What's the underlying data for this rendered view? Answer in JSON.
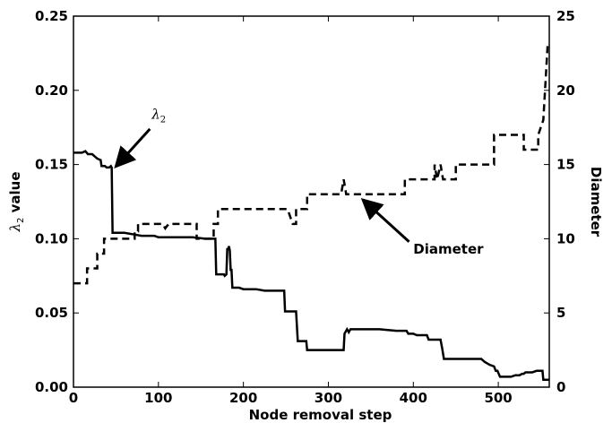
{
  "chart_data": {
    "type": "line",
    "xlabel": "Node removal step",
    "ylabel_left": "value",
    "ylabel_left_symbol": "λ",
    "ylabel_left_sub": "2",
    "ylabel_right": "Diameter",
    "xlim": [
      0,
      560
    ],
    "ylim_left": [
      0,
      0.25
    ],
    "ylim_right": [
      0,
      25
    ],
    "x_ticks": [
      0,
      100,
      200,
      300,
      400,
      500
    ],
    "y_left_ticks": [
      "0.00",
      "0.05",
      "0.10",
      "0.15",
      "0.20",
      "0.25"
    ],
    "y_right_ticks": [
      "0",
      "5",
      "10",
      "15",
      "20",
      "25"
    ],
    "grid": false,
    "series": [
      {
        "name": "λ2",
        "axis": "left",
        "style": "solid",
        "points": [
          [
            0,
            0.158
          ],
          [
            10,
            0.158
          ],
          [
            14,
            0.159
          ],
          [
            17,
            0.157
          ],
          [
            22,
            0.157
          ],
          [
            26,
            0.155
          ],
          [
            28,
            0.154
          ],
          [
            32,
            0.153
          ],
          [
            33,
            0.149
          ],
          [
            37,
            0.149
          ],
          [
            39,
            0.148
          ],
          [
            42,
            0.148
          ],
          [
            44,
            0.149
          ],
          [
            45,
            0.148
          ],
          [
            46,
            0.104
          ],
          [
            60,
            0.104
          ],
          [
            70,
            0.103
          ],
          [
            80,
            0.102
          ],
          [
            95,
            0.102
          ],
          [
            100,
            0.101
          ],
          [
            120,
            0.101
          ],
          [
            140,
            0.101
          ],
          [
            155,
            0.1
          ],
          [
            165,
            0.1
          ],
          [
            167,
            0.1
          ],
          [
            168,
            0.076
          ],
          [
            177,
            0.076
          ],
          [
            178,
            0.075
          ],
          [
            180,
            0.076
          ],
          [
            181,
            0.093
          ],
          [
            182,
            0.093
          ],
          [
            183,
            0.095
          ],
          [
            184,
            0.092
          ],
          [
            185,
            0.079
          ],
          [
            186,
            0.079
          ],
          [
            187,
            0.067
          ],
          [
            195,
            0.067
          ],
          [
            200,
            0.066
          ],
          [
            215,
            0.066
          ],
          [
            225,
            0.065
          ],
          [
            248,
            0.065
          ],
          [
            249,
            0.051
          ],
          [
            262,
            0.051
          ],
          [
            264,
            0.031
          ],
          [
            274,
            0.031
          ],
          [
            275,
            0.025
          ],
          [
            300,
            0.025
          ],
          [
            318,
            0.025
          ],
          [
            319,
            0.036
          ],
          [
            322,
            0.039
          ],
          [
            324,
            0.037
          ],
          [
            326,
            0.039
          ],
          [
            360,
            0.039
          ],
          [
            380,
            0.038
          ],
          [
            392,
            0.038
          ],
          [
            394,
            0.036
          ],
          [
            400,
            0.036
          ],
          [
            404,
            0.035
          ],
          [
            416,
            0.035
          ],
          [
            418,
            0.032
          ],
          [
            432,
            0.032
          ],
          [
            434,
            0.026
          ],
          [
            436,
            0.019
          ],
          [
            480,
            0.019
          ],
          [
            484,
            0.017
          ],
          [
            490,
            0.015
          ],
          [
            495,
            0.014
          ],
          [
            497,
            0.011
          ],
          [
            499,
            0.011
          ],
          [
            502,
            0.007
          ],
          [
            515,
            0.007
          ],
          [
            520,
            0.008
          ],
          [
            525,
            0.008
          ],
          [
            528,
            0.009
          ],
          [
            530,
            0.009
          ],
          [
            532,
            0.01
          ],
          [
            540,
            0.01
          ],
          [
            545,
            0.011
          ],
          [
            552,
            0.011
          ],
          [
            553,
            0.005
          ],
          [
            560,
            0.005
          ]
        ]
      },
      {
        "name": "Diameter",
        "axis": "right",
        "style": "dashed",
        "points": [
          [
            0,
            7
          ],
          [
            16,
            7
          ],
          [
            16,
            8
          ],
          [
            28,
            8
          ],
          [
            28,
            9
          ],
          [
            36,
            9
          ],
          [
            36,
            10
          ],
          [
            72,
            10
          ],
          [
            72,
            10.5
          ],
          [
            76,
            10.5
          ],
          [
            76,
            11
          ],
          [
            105,
            11
          ],
          [
            108,
            10.7
          ],
          [
            112,
            11
          ],
          [
            145,
            11
          ],
          [
            145,
            10
          ],
          [
            165,
            10
          ],
          [
            165,
            11
          ],
          [
            170,
            11
          ],
          [
            170,
            12
          ],
          [
            245,
            12
          ],
          [
            252,
            12
          ],
          [
            258,
            11
          ],
          [
            262,
            11
          ],
          [
            262,
            12
          ],
          [
            275,
            12
          ],
          [
            275,
            13
          ],
          [
            315,
            13
          ],
          [
            318,
            14
          ],
          [
            321,
            13
          ],
          [
            390,
            13
          ],
          [
            390,
            14
          ],
          [
            425,
            14
          ],
          [
            425,
            15
          ],
          [
            428,
            14
          ],
          [
            432,
            15
          ],
          [
            435,
            14
          ],
          [
            450,
            14
          ],
          [
            450,
            15
          ],
          [
            495,
            15
          ],
          [
            495,
            17
          ],
          [
            530,
            17
          ],
          [
            530,
            16
          ],
          [
            547,
            16
          ],
          [
            547,
            17
          ],
          [
            553,
            18
          ],
          [
            555,
            20
          ],
          [
            557,
            22
          ],
          [
            558,
            23
          ]
        ]
      }
    ],
    "annotations": [
      {
        "label_symbol": "λ",
        "label_sub": "2",
        "text_at": [
          92,
          0.181
        ],
        "arrow_from": [
          90,
          0.174
        ],
        "arrow_to": [
          52,
          0.15
        ]
      },
      {
        "label": "Diameter",
        "text_at": [
          400,
          9.0
        ],
        "arrow_from": [
          395,
          9.8
        ],
        "arrow_to": [
          343,
          12.5
        ]
      }
    ]
  }
}
